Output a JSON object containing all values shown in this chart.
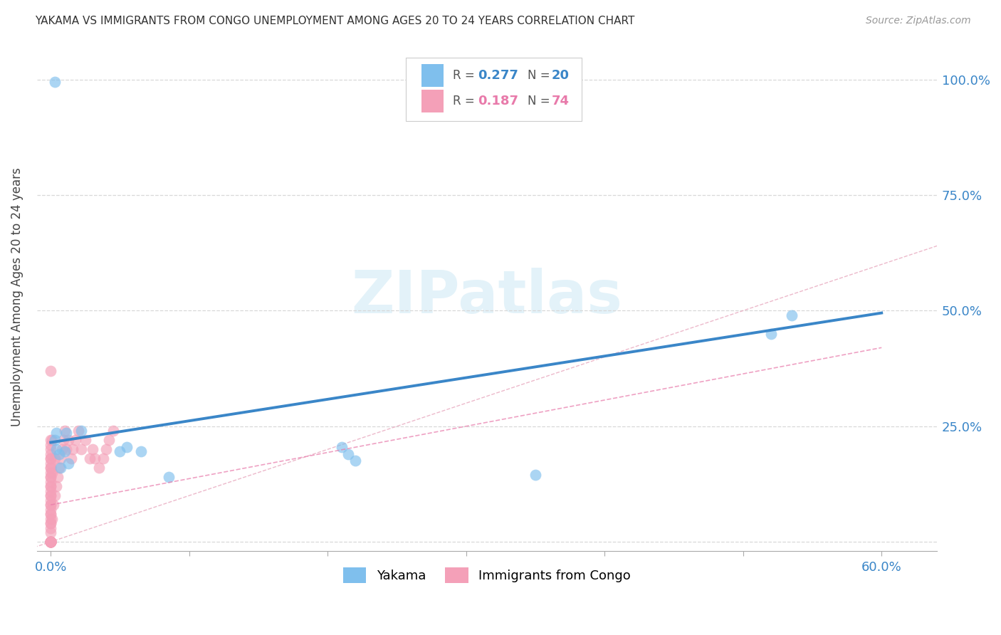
{
  "title": "YAKAMA VS IMMIGRANTS FROM CONGO UNEMPLOYMENT AMONG AGES 20 TO 24 YEARS CORRELATION CHART",
  "source": "Source: ZipAtlas.com",
  "ylabel": "Unemployment Among Ages 20 to 24 years",
  "ytick_positions": [
    0.0,
    0.25,
    0.5,
    0.75,
    1.0
  ],
  "ytick_labels": [
    "",
    "25.0%",
    "50.0%",
    "75.0%",
    "100.0%"
  ],
  "xtick_positions": [
    0.0,
    0.1,
    0.2,
    0.3,
    0.4,
    0.5,
    0.6
  ],
  "xtick_labels": [
    "0.0%",
    "",
    "",
    "",
    "",
    "",
    "60.0%"
  ],
  "xlim": [
    -0.01,
    0.64
  ],
  "ylim": [
    -0.02,
    1.08
  ],
  "blue_color": "#7fbfed",
  "pink_color": "#f4a0b8",
  "trendline_blue": "#3a86c8",
  "trendline_pink": "#e87aaa",
  "ref_line_color": "#cccccc",
  "grid_color": "#d8d8d8",
  "watermark_text": "ZIPatlas",
  "watermark_color": "#cde8f5",
  "legend_box_color": "#e8e8e8",
  "yakama_x": [
    0.022,
    0.003,
    0.004,
    0.004,
    0.006,
    0.007,
    0.01,
    0.011,
    0.013,
    0.05,
    0.055,
    0.065,
    0.085,
    0.21,
    0.215,
    0.22,
    0.35,
    0.52,
    0.535,
    0.003
  ],
  "yakama_y": [
    0.24,
    0.22,
    0.235,
    0.2,
    0.19,
    0.16,
    0.195,
    0.235,
    0.17,
    0.195,
    0.205,
    0.195,
    0.14,
    0.205,
    0.19,
    0.175,
    0.145,
    0.45,
    0.49,
    0.995
  ],
  "congo_x": [
    0.0,
    0.0,
    0.0,
    0.0,
    0.0,
    0.0,
    0.0,
    0.0,
    0.0,
    0.0,
    0.0,
    0.0,
    0.0,
    0.0,
    0.0,
    0.0,
    0.0,
    0.0,
    0.0,
    0.0,
    0.0,
    0.0,
    0.0,
    0.0,
    0.0,
    0.0,
    0.0,
    0.0,
    0.0,
    0.0,
    0.0,
    0.0,
    0.0,
    0.0,
    0.0,
    0.0,
    0.0,
    0.0,
    0.0,
    0.0,
    0.0,
    0.0,
    0.0,
    0.0,
    0.0,
    0.001,
    0.001,
    0.001,
    0.002,
    0.003,
    0.003,
    0.004,
    0.005,
    0.006,
    0.007,
    0.008,
    0.009,
    0.01,
    0.011,
    0.013,
    0.015,
    0.016,
    0.018,
    0.02,
    0.022,
    0.025,
    0.028,
    0.03,
    0.032,
    0.035,
    0.038,
    0.04,
    0.042,
    0.045
  ],
  "congo_y": [
    0.0,
    0.0,
    0.0,
    0.0,
    0.0,
    0.0,
    0.0,
    0.0,
    0.0,
    0.0,
    0.0,
    0.0,
    0.0,
    0.0,
    0.0,
    0.02,
    0.03,
    0.04,
    0.05,
    0.06,
    0.07,
    0.08,
    0.09,
    0.1,
    0.11,
    0.12,
    0.13,
    0.14,
    0.15,
    0.16,
    0.17,
    0.18,
    0.19,
    0.2,
    0.21,
    0.22,
    0.04,
    0.06,
    0.08,
    0.1,
    0.12,
    0.14,
    0.16,
    0.18,
    0.37,
    0.05,
    0.15,
    0.22,
    0.08,
    0.1,
    0.18,
    0.12,
    0.14,
    0.16,
    0.18,
    0.2,
    0.22,
    0.24,
    0.2,
    0.22,
    0.18,
    0.2,
    0.22,
    0.24,
    0.2,
    0.22,
    0.18,
    0.2,
    0.18,
    0.16,
    0.18,
    0.2,
    0.22,
    0.24
  ],
  "trend_blue_x0": 0.0,
  "trend_blue_y0": 0.215,
  "trend_blue_x1": 0.6,
  "trend_blue_y1": 0.495,
  "trend_pink_x0": 0.0,
  "trend_pink_y0": 0.08,
  "trend_pink_x1": 0.6,
  "trend_pink_y1": 0.42
}
